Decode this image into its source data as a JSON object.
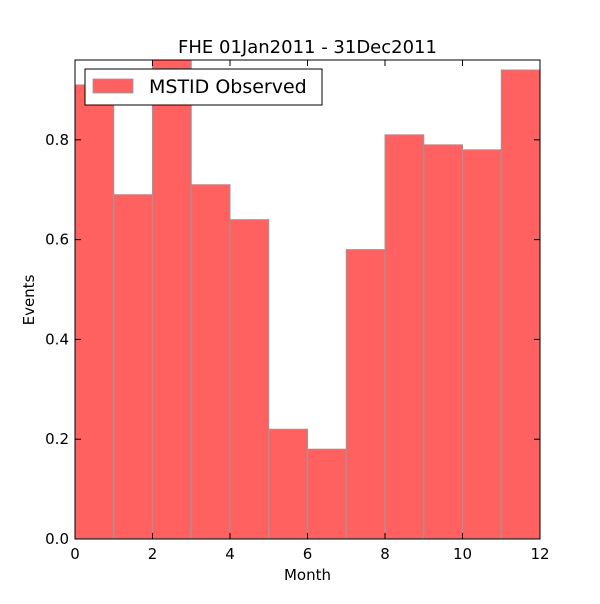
{
  "chart_data": {
    "type": "bar",
    "title": "FHE 01Jan2011 - 31Dec2011",
    "xlabel": "Month",
    "ylabel": "Events",
    "xlim": [
      0,
      12
    ],
    "ylim": [
      0,
      0.96
    ],
    "xticks": [
      0,
      2,
      4,
      6,
      8,
      10,
      12
    ],
    "xtick_labels": [
      "0",
      "2",
      "4",
      "6",
      "8",
      "10",
      "12"
    ],
    "yticks": [
      0.0,
      0.2,
      0.4,
      0.6,
      0.8
    ],
    "ytick_labels": [
      "0.0",
      "0.2",
      "0.4",
      "0.6",
      "0.8"
    ],
    "bins": [
      {
        "x0": 0,
        "x1": 1,
        "value": 0.91
      },
      {
        "x0": 1,
        "x1": 2,
        "value": 0.69
      },
      {
        "x0": 2,
        "x1": 3,
        "value": 0.96
      },
      {
        "x0": 3,
        "x1": 4,
        "value": 0.71
      },
      {
        "x0": 4,
        "x1": 5,
        "value": 0.64
      },
      {
        "x0": 5,
        "x1": 6,
        "value": 0.22
      },
      {
        "x0": 6,
        "x1": 7,
        "value": 0.18
      },
      {
        "x0": 7,
        "x1": 8,
        "value": 0.58
      },
      {
        "x0": 8,
        "x1": 9,
        "value": 0.81
      },
      {
        "x0": 9,
        "x1": 10,
        "value": 0.79
      },
      {
        "x0": 10,
        "x1": 11,
        "value": 0.78
      },
      {
        "x0": 11,
        "x1": 12,
        "value": 0.94
      }
    ],
    "series": [
      {
        "name": "MSTID Observed",
        "color": "#ff6161",
        "edge_color": "#999999"
      }
    ],
    "legend_position": "top-left",
    "grid": false
  }
}
